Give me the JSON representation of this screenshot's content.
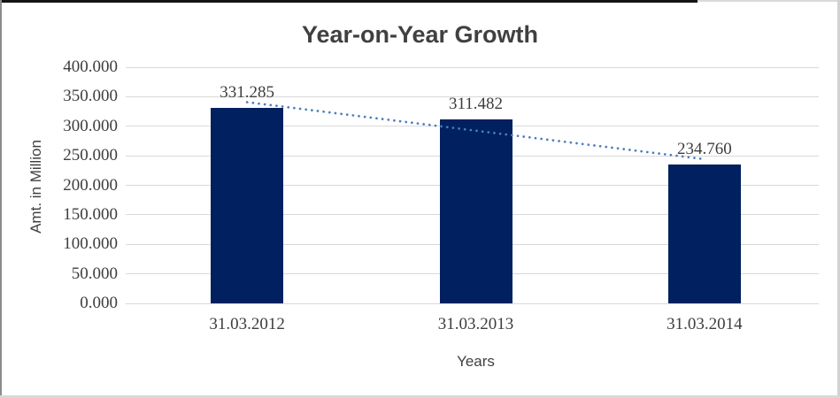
{
  "chart_data": {
    "type": "bar",
    "title": "Year-on-Year Growth",
    "xlabel": "Years",
    "ylabel": "Amt. in Million",
    "categories": [
      "31.03.2012",
      "31.03.2013",
      "31.03.2014"
    ],
    "values": [
      331.285,
      311.482,
      234.76
    ],
    "data_labels": [
      "331.285",
      "311.482",
      "234.760"
    ],
    "ylim": [
      0,
      400
    ],
    "ytick_step": 50,
    "ytick_labels": [
      "0.000",
      "50.000",
      "100.000",
      "150.000",
      "200.000",
      "250.000",
      "300.000",
      "350.000",
      "400.000"
    ],
    "grid": true,
    "legend": "none",
    "trendline": {
      "style": "dotted",
      "fit": "linear",
      "start_value": 340.8,
      "end_value": 244.2
    },
    "colors": {
      "bar": "#002060",
      "gridline": "#d9d9d9",
      "trendline": "#4a7ebb",
      "title_text": "#404040",
      "tick_text": "#3d3d3d",
      "frame_top_dark": "#141414",
      "frame_light": "#d9d9d9",
      "frame_left": "#8c8c8c"
    }
  }
}
